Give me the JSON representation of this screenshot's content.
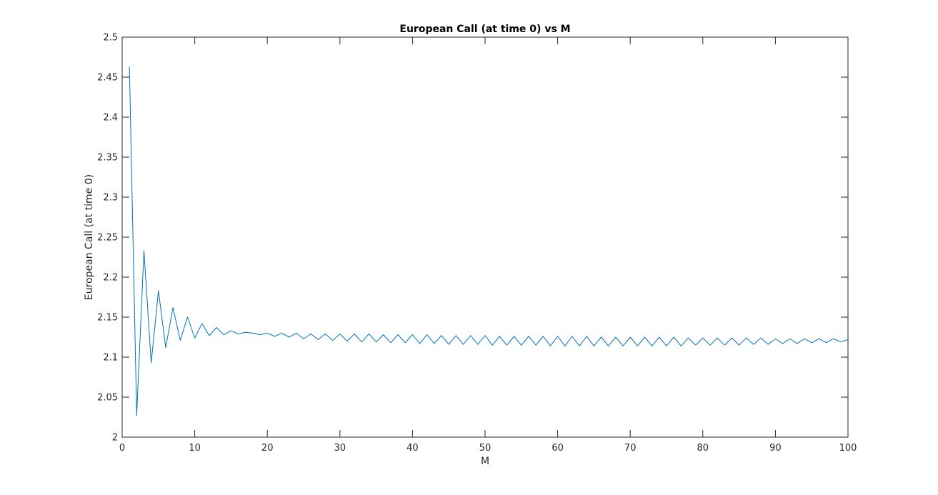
{
  "chart_data": {
    "type": "line",
    "title": "European Call (at time 0) vs M",
    "xlabel": "M",
    "ylabel": "European Call (at time 0)",
    "xlim": [
      0,
      100
    ],
    "ylim": [
      2,
      2.5
    ],
    "xticks": [
      "0",
      "10",
      "20",
      "30",
      "40",
      "50",
      "60",
      "70",
      "80",
      "90",
      "100"
    ],
    "yticks": [
      "2",
      "2.05",
      "2.1",
      "2.15",
      "2.2",
      "2.25",
      "2.3",
      "2.35",
      "2.4",
      "2.45",
      "2.5"
    ],
    "grid": false,
    "line_color": "#0072BD",
    "series": [
      {
        "x": [
          1,
          2,
          3,
          4,
          5,
          6,
          7,
          8,
          9,
          10,
          11,
          12,
          13,
          14,
          15,
          16,
          17,
          18,
          19,
          20,
          21,
          22,
          23,
          24,
          25,
          26,
          27,
          28,
          29,
          30,
          31,
          32,
          33,
          34,
          35,
          36,
          37,
          38,
          39,
          40,
          41,
          42,
          43,
          44,
          45,
          46,
          47,
          48,
          49,
          50,
          51,
          52,
          53,
          54,
          55,
          56,
          57,
          58,
          59,
          60,
          61,
          62,
          63,
          64,
          65,
          66,
          67,
          68,
          69,
          70,
          71,
          72,
          73,
          74,
          75,
          76,
          77,
          78,
          79,
          80,
          81,
          82,
          83,
          84,
          85,
          86,
          87,
          88,
          89,
          90,
          91,
          92,
          93,
          94,
          95,
          96,
          97,
          98,
          99,
          100
        ],
        "values": [
          2.463,
          2.027,
          2.233,
          2.093,
          2.183,
          2.112,
          2.162,
          2.121,
          2.15,
          2.124,
          2.142,
          2.127,
          2.137,
          2.128,
          2.133,
          2.129,
          2.131,
          2.13,
          2.128,
          2.13,
          2.126,
          2.13,
          2.125,
          2.13,
          2.123,
          2.129,
          2.122,
          2.129,
          2.121,
          2.129,
          2.12,
          2.129,
          2.119,
          2.129,
          2.119,
          2.128,
          2.118,
          2.128,
          2.118,
          2.128,
          2.117,
          2.128,
          2.117,
          2.127,
          2.116,
          2.127,
          2.116,
          2.127,
          2.116,
          2.127,
          2.115,
          2.126,
          2.115,
          2.126,
          2.115,
          2.126,
          2.115,
          2.126,
          2.114,
          2.126,
          2.114,
          2.126,
          2.114,
          2.126,
          2.114,
          2.125,
          2.114,
          2.125,
          2.114,
          2.125,
          2.114,
          2.125,
          2.114,
          2.125,
          2.114,
          2.125,
          2.114,
          2.124,
          2.115,
          2.124,
          2.115,
          2.124,
          2.115,
          2.124,
          2.115,
          2.124,
          2.116,
          2.124,
          2.116,
          2.123,
          2.117,
          2.123,
          2.117,
          2.123,
          2.118,
          2.123,
          2.118,
          2.123,
          2.119,
          2.122
        ]
      }
    ]
  }
}
